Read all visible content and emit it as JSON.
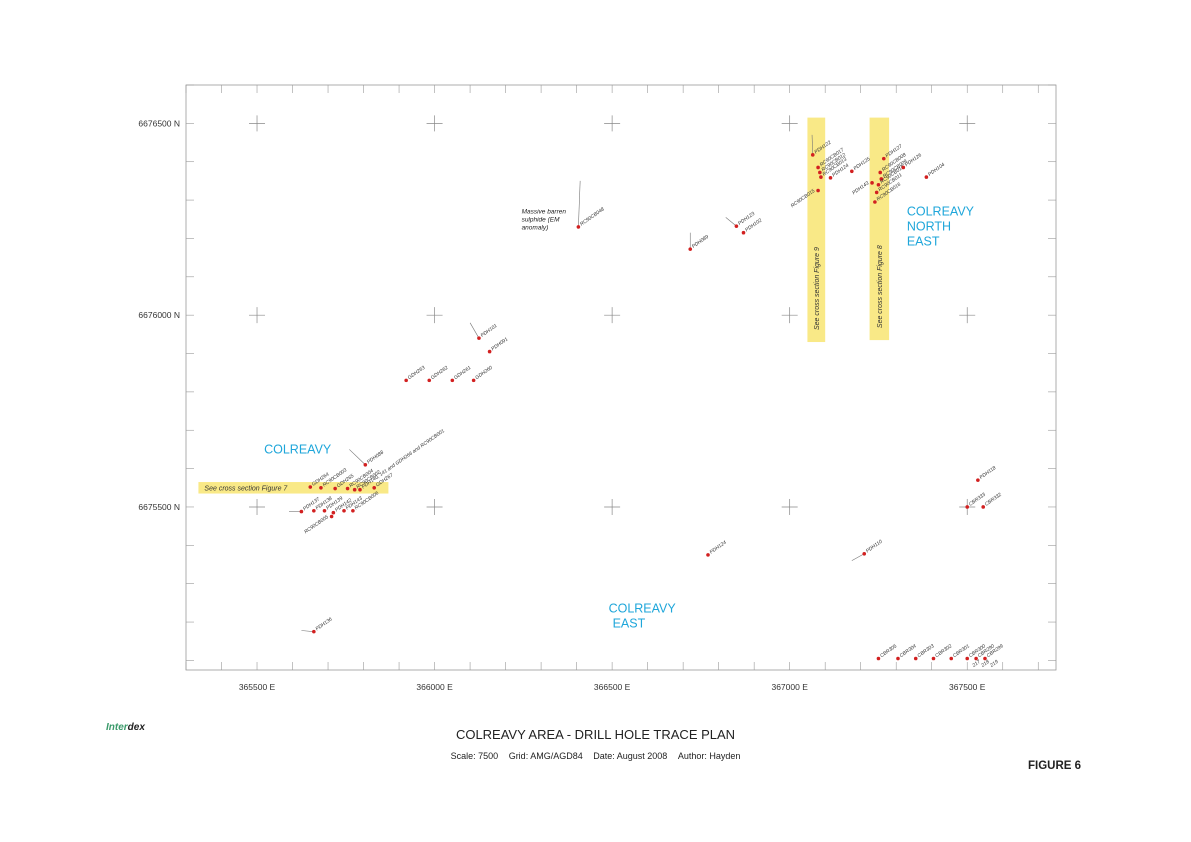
{
  "axes": {
    "y_labels": [
      "6676500 N",
      "6676000 N",
      "6675500 N"
    ],
    "x_labels": [
      "365500 E",
      "366000 E",
      "366500 E",
      "367000 E",
      "367500 E"
    ],
    "easting_range": [
      365300,
      367750
    ],
    "northing_range": [
      6675075,
      6676600
    ],
    "grid_crosses": {
      "eastings": [
        365500,
        366000,
        366500,
        367000,
        367500
      ],
      "northings": [
        6675500,
        6676000,
        6676500
      ]
    }
  },
  "areas": [
    {
      "lines": [
        "COLREAVY"
      ],
      "e": 365520,
      "n": 6675640
    },
    {
      "lines": [
        "COLREAVY",
        "EAST"
      ],
      "e": 366490,
      "n": 6675225
    },
    {
      "lines": [
        "COLREAVY",
        "NORTH",
        "EAST"
      ],
      "e": 367330,
      "n": 6676260
    }
  ],
  "sections": [
    {
      "label": "See cross section Figure 7",
      "orientation": "h",
      "e1": 365335,
      "e2": 365870,
      "n1": 6675535,
      "n2": 6675565
    },
    {
      "label": "See cross section Figure 9",
      "orientation": "v",
      "e1": 367050,
      "e2": 367100,
      "n1": 6675930,
      "n2": 6676515
    },
    {
      "label": "See cross section Figure 8",
      "orientation": "v",
      "e1": 367225,
      "e2": 367280,
      "n1": 6675935,
      "n2": 6676515
    }
  ],
  "annotation": {
    "lines": [
      "Massive barren",
      "sulphide (EM",
      "anomaly)"
    ],
    "e": 366245,
    "n": 6676265
  },
  "holes": [
    {
      "label": "PDH122",
      "e": 367065,
      "n": 6676418,
      "te": 367063,
      "tn": 6676470
    },
    {
      "label": "RC90CB017",
      "e": 367080,
      "n": 6676385
    },
    {
      "label": "RC90CB012",
      "e": 367085,
      "n": 6676372
    },
    {
      "label": "RC90CB013",
      "e": 367088,
      "n": 6676360
    },
    {
      "label": "PDH124",
      "e": 367115,
      "n": 6676358
    },
    {
      "label": "PDH125",
      "e": 367175,
      "n": 6676375
    },
    {
      "label": "RC90CB015",
      "e": 367080,
      "n": 6676325,
      "rev": true
    },
    {
      "label": "PDH127",
      "e": 367265,
      "n": 6676408
    },
    {
      "label": "RC90CB008",
      "e": 367255,
      "n": 6676372
    },
    {
      "label": "RC90CB009",
      "e": 367258,
      "n": 6676355
    },
    {
      "label": "RC90CB010",
      "e": 367250,
      "n": 6676340
    },
    {
      "label": "RC90CB011",
      "e": 367245,
      "n": 6676320
    },
    {
      "label": "RC90CB016",
      "e": 367240,
      "n": 6676295
    },
    {
      "label": "PDH143",
      "e": 367232,
      "n": 6676345,
      "rev": true
    },
    {
      "label": "PDH126",
      "e": 367320,
      "n": 6676385
    },
    {
      "label": "PDH104",
      "e": 367385,
      "n": 6676360
    },
    {
      "label": "RC90CB048",
      "e": 366405,
      "n": 6676230,
      "te": 366410,
      "tn": 6676350
    },
    {
      "label": "PDH123",
      "e": 366850,
      "n": 6676232,
      "te": 366820,
      "tn": 6676255
    },
    {
      "label": "PDH102",
      "e": 366870,
      "n": 6676215
    },
    {
      "label": "PDH089",
      "e": 366720,
      "n": 6676172,
      "te": 366720,
      "tn": 6676215
    },
    {
      "label": "PDH101",
      "e": 366125,
      "n": 6675940,
      "te": 366100,
      "tn": 6675980
    },
    {
      "label": "PDH091",
      "e": 366155,
      "n": 6675905
    },
    {
      "label": "GDH263",
      "e": 365920,
      "n": 6675830
    },
    {
      "label": "GDH262",
      "e": 365985,
      "n": 6675830
    },
    {
      "label": "GDH261",
      "e": 366050,
      "n": 6675830
    },
    {
      "label": "GDH260",
      "e": 366110,
      "n": 6675830
    },
    {
      "label": "GDH264",
      "e": 365650,
      "n": 6675552
    },
    {
      "label": "RC90CB003",
      "e": 365680,
      "n": 6675550
    },
    {
      "label": "GDH265",
      "e": 365720,
      "n": 6675548
    },
    {
      "label": "RC90CB004",
      "e": 365755,
      "n": 6675548
    },
    {
      "label": "RC90CB002",
      "e": 365775,
      "n": 6675545
    },
    {
      "label": "PDH088",
      "e": 365805,
      "n": 6675610,
      "te": 365760,
      "tn": 6675650
    },
    {
      "label": "GDH267",
      "e": 365830,
      "n": 6675550
    },
    {
      "label": "PDH140, 141 and GDH266 and RC90CB001",
      "e": 365790,
      "n": 6675545
    },
    {
      "label": "PDH137",
      "e": 365625,
      "n": 6675488,
      "te": 365590,
      "tn": 6675488
    },
    {
      "label": "PDH138",
      "e": 365660,
      "n": 6675490
    },
    {
      "label": "PDH139",
      "e": 365690,
      "n": 6675490
    },
    {
      "label": "PDH142",
      "e": 365715,
      "n": 6675485
    },
    {
      "label": "PDH143",
      "e": 365745,
      "n": 6675490
    },
    {
      "label": "RC90CB005",
      "e": 365710,
      "n": 6675475,
      "rev": true
    },
    {
      "label": "RC90CB006",
      "e": 365770,
      "n": 6675490
    },
    {
      "label": "PDH124",
      "e": 366770,
      "n": 6675375
    },
    {
      "label": "PDH110",
      "e": 367210,
      "n": 6675378,
      "te": 367175,
      "tn": 6675360
    },
    {
      "label": "PDH136",
      "e": 365660,
      "n": 6675175,
      "te": 365625,
      "tn": 6675178
    },
    {
      "label": "PDH118",
      "e": 367530,
      "n": 6675570
    },
    {
      "label": "CBR333",
      "e": 367500,
      "n": 6675500
    },
    {
      "label": "CBR332",
      "e": 367545,
      "n": 6675500
    },
    {
      "label": "CBR305",
      "e": 367250,
      "n": 6675105
    },
    {
      "label": "CBR304",
      "e": 367305,
      "n": 6675105
    },
    {
      "label": "CBR303",
      "e": 367355,
      "n": 6675105
    },
    {
      "label": "CBR302",
      "e": 367405,
      "n": 6675105
    },
    {
      "label": "CBR301",
      "e": 367455,
      "n": 6675105
    },
    {
      "label": "CBR300",
      "e": 367500,
      "n": 6675105
    },
    {
      "label": "CBR290",
      "e": 367525,
      "n": 6675105
    },
    {
      "label": "CBR299",
      "e": 367550,
      "n": 6675105
    },
    {
      "label": "217",
      "e": 367510,
      "n": 6675080,
      "nodot": true
    },
    {
      "label": "218",
      "e": 367535,
      "n": 6675080,
      "nodot": true
    },
    {
      "label": "219",
      "e": 367560,
      "n": 6675080,
      "nodot": true
    }
  ],
  "title": "COLREAVY AREA - DRILL HOLE TRACE PLAN",
  "meta": {
    "scale": "Scale: 7500",
    "grid": "Grid: AMG/AGD84",
    "date": "Date: August 2008",
    "author": "Author: Hayden"
  },
  "figure_label": "FIGURE 6",
  "logo": {
    "part1": "Inter",
    "part2": "dex"
  }
}
